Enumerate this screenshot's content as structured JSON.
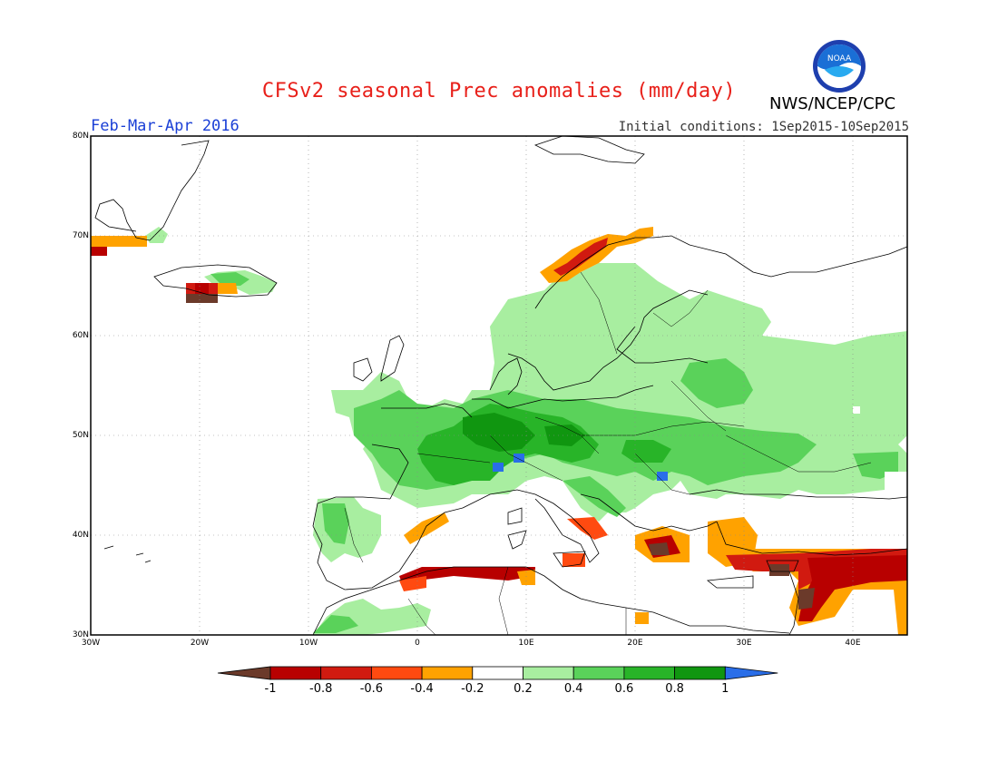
{
  "title": "CFSv2 seasonal Prec anomalies (mm/day)",
  "agency": "NWS/NCEP/CPC",
  "logo_label": "NOAA",
  "period": "Feb-Mar-Apr 2016",
  "initial_conditions": "Initial conditions: 1Sep2015-10Sep2015",
  "lat_labels": [
    "80N",
    "70N",
    "60N",
    "50N",
    "40N",
    "30N"
  ],
  "lon_labels": [
    "30W",
    "20W",
    "10W",
    "0",
    "10E",
    "20E",
    "30E",
    "40E"
  ],
  "colorbar": {
    "labels": [
      "-1",
      "-0.8",
      "-0.6",
      "-0.4",
      "-0.2",
      "0.2",
      "0.4",
      "0.6",
      "0.8",
      "1"
    ],
    "colors": [
      "#6b3a2a",
      "#b80000",
      "#d11a10",
      "#ff4a10",
      "#ffa200",
      "#ffffff",
      "#a8eea0",
      "#5ad25a",
      "#28b428",
      "#109610",
      "#2a6ee8"
    ]
  },
  "map": {
    "extent": {
      "lon_min": -30,
      "lon_max": 45,
      "lat_min": 30,
      "lat_max": 80
    },
    "grid_interval_deg": 10,
    "anomaly_regions": [
      {
        "category": "wet 0.2-0.4",
        "color": "#a8eea0"
      },
      {
        "category": "wet 0.4-0.6",
        "color": "#5ad25a"
      },
      {
        "category": "wet 0.6-0.8",
        "color": "#28b428"
      },
      {
        "category": "wet 0.8-1",
        "color": "#109610"
      },
      {
        "category": "wet >1",
        "color": "#2a6ee8"
      },
      {
        "category": "dry -0.2--0.4",
        "color": "#ffa200"
      },
      {
        "category": "dry -0.4--0.6",
        "color": "#ff4a10"
      },
      {
        "category": "dry -0.6--0.8",
        "color": "#d11a10"
      },
      {
        "category": "dry -0.8--1",
        "color": "#b80000"
      },
      {
        "category": "dry <-1",
        "color": "#6b3a2a"
      }
    ]
  }
}
